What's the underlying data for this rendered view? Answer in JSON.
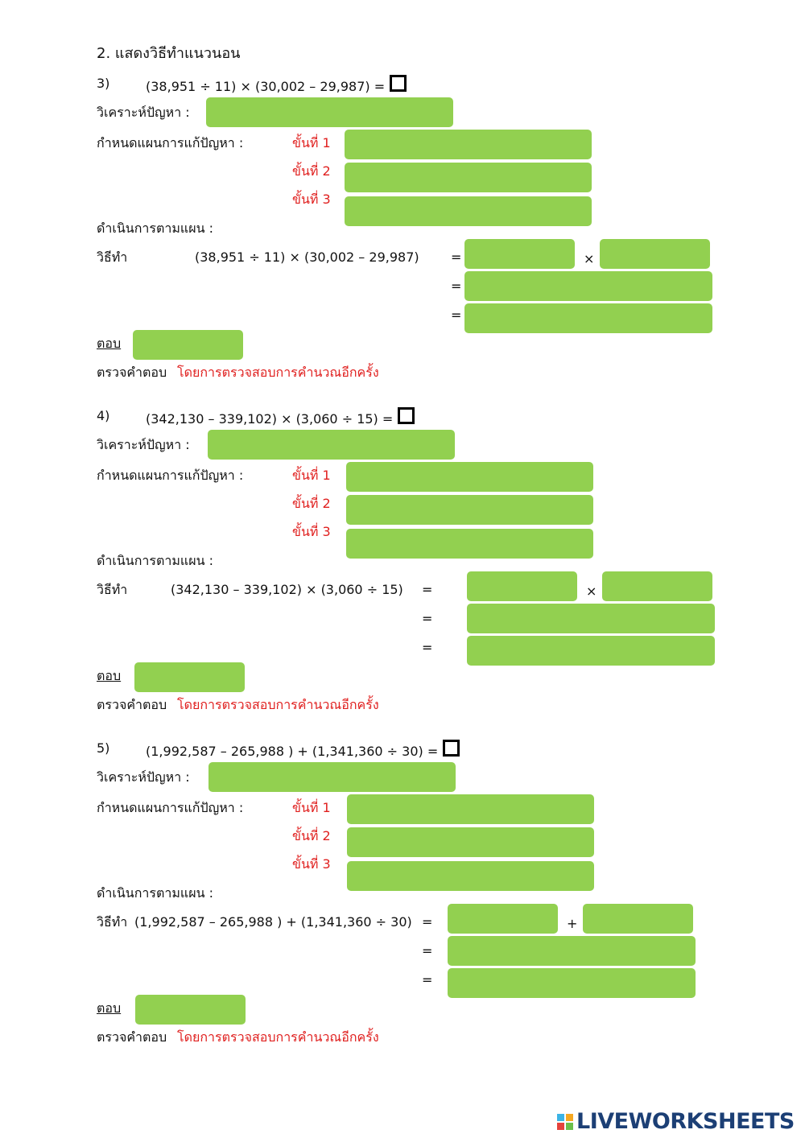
{
  "heading": "2. แสดงวิธีทำแนวนอน",
  "problems": [
    {
      "number": "3)",
      "expression": "(38,951 ÷ 11) × (30,002 – 29,987) =",
      "analyze_label": "วิเคราะห์ปัญหา :",
      "plan_label": "กำหนดแผนการแก้ปัญหา :",
      "steps": [
        "ขั้นที่ 1",
        "ขั้นที่ 2",
        "ขั้นที่ 3"
      ],
      "execute_label": "ดำเนินการตามแผน :",
      "method_label": "วิธีทำ",
      "method_expression": "(38,951 ÷ 11) × (30,002 – 29,987)",
      "equals": [
        "=",
        "=",
        "="
      ],
      "operator": "×",
      "answer_label": "ตอบ",
      "check_label": "ตรวจคำตอบ",
      "check_note": "โดยการตรวจสอบการคำนวณอีกครั้ง"
    },
    {
      "number": "4)",
      "expression": "(342,130 – 339,102) × (3,060 ÷ 15) =",
      "analyze_label": "วิเคราะห์ปัญหา :",
      "plan_label": "กำหนดแผนการแก้ปัญหา :",
      "steps": [
        "ขั้นที่ 1",
        "ขั้นที่ 2",
        "ขั้นที่ 3"
      ],
      "execute_label": "ดำเนินการตามแผน :",
      "method_label": "วิธีทำ",
      "method_expression": "(342,130 – 339,102) × (3,060 ÷ 15)",
      "equals": [
        "=",
        "=",
        "="
      ],
      "operator": "×",
      "answer_label": "ตอบ",
      "check_label": "ตรวจคำตอบ",
      "check_note": "โดยการตรวจสอบการคำนวณอีกครั้ง"
    },
    {
      "number": "5)",
      "expression": "(1,992,587 – 265,988 ) + (1,341,360 ÷ 30) =",
      "analyze_label": "วิเคราะห์ปัญหา :",
      "plan_label": "กำหนดแผนการแก้ปัญหา :",
      "steps": [
        "ขั้นที่ 1",
        "ขั้นที่ 2",
        "ขั้นที่ 3"
      ],
      "execute_label": "ดำเนินการตามแผน :",
      "method_label": "วิธีทำ",
      "method_expression": "(1,992,587 – 265,988 ) + (1,341,360 ÷ 30)",
      "equals": [
        "=",
        "=",
        "="
      ],
      "operator": "+",
      "answer_label": "ตอบ",
      "check_label": "ตรวจคำตอบ",
      "check_note": "โดยการตรวจสอบการคำนวณอีกครั้ง"
    }
  ],
  "footer": {
    "brand": "LIVEWORKSHEETS"
  }
}
